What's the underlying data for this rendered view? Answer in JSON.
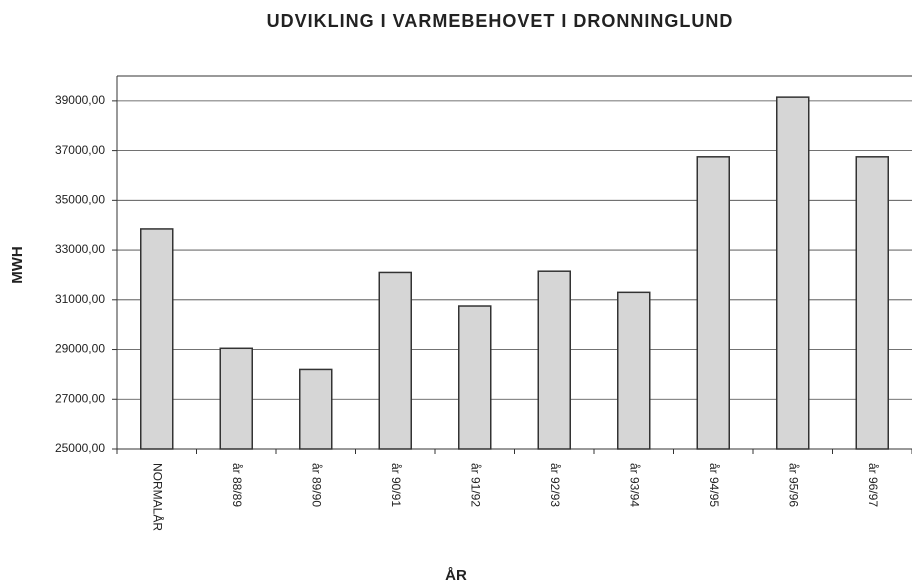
{
  "chart_data": {
    "type": "bar",
    "title": "UDVIKLING I VARMEBEHOVET I DRONNINGLUND",
    "y_label": "MWH",
    "x_label": "ÅR",
    "categories": [
      "NORMALÅR",
      "år 88/89",
      "år 89/90",
      "år 90/91",
      "år 91/92",
      "år 92/93",
      "år 93/94",
      "år 94/95",
      "år 95/96",
      "år 96/97"
    ],
    "values": [
      33850,
      29050,
      28200,
      32100,
      30750,
      32150,
      31300,
      36750,
      39150,
      36750
    ],
    "color": "#d6d6d6",
    "ylim": [
      25000,
      40000
    ],
    "yticks": [
      {
        "value": 25000,
        "label": "25000,00"
      },
      {
        "value": 27000,
        "label": "27000,00"
      },
      {
        "value": 29000,
        "label": "29000,00"
      },
      {
        "value": 31000,
        "label": "31000,00"
      },
      {
        "value": 33000,
        "label": "33000,00"
      },
      {
        "value": 35000,
        "label": "35000,00"
      },
      {
        "value": 37000,
        "label": "37000,00"
      },
      {
        "value": 39000,
        "label": "39000,00"
      }
    ],
    "grid": true
  }
}
